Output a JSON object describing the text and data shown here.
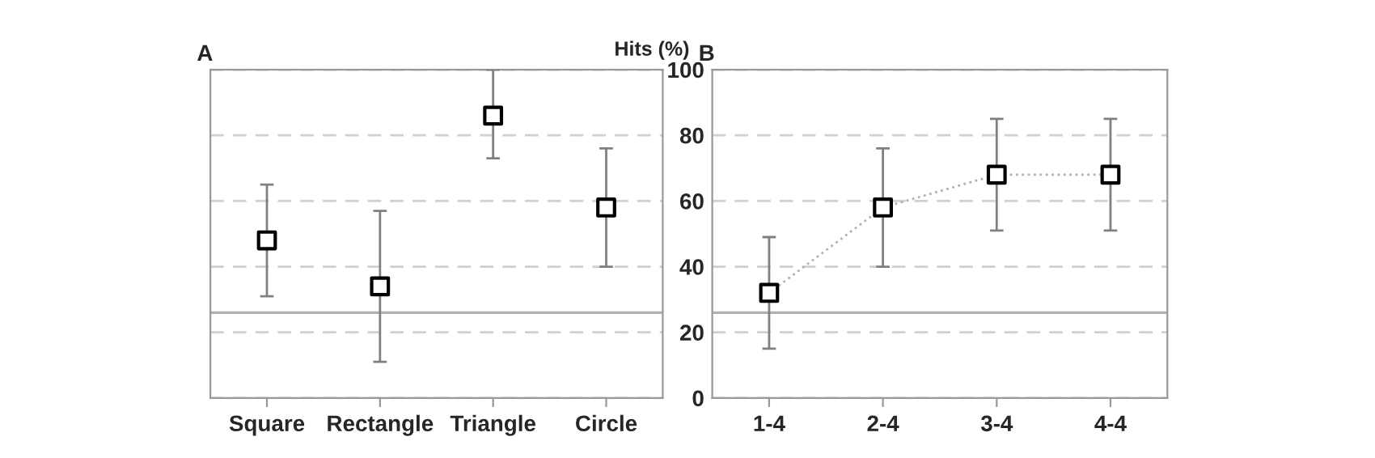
{
  "chart_data": [
    {
      "type": "scatter",
      "title": "A",
      "categories": [
        "Square",
        "Rectangle",
        "Triangle",
        "Circle"
      ],
      "ylim": [
        0,
        100
      ],
      "yticks": [
        0,
        20,
        40,
        60,
        80,
        100
      ],
      "tick_labels": "x",
      "grid": "y",
      "marker": "square",
      "series": [
        {
          "color": "#000000",
          "values": [
            48,
            34,
            86,
            58
          ],
          "errors": [
            [
              31,
              65
            ],
            [
              11,
              57
            ],
            [
              73,
              100
            ],
            [
              40,
              76
            ]
          ]
        }
      ],
      "ref_lines": [
        {
          "axis": "y",
          "value": 26,
          "color": "#b0b0b0",
          "line_style": "solid"
        }
      ]
    },
    {
      "type": "scatter",
      "title": "B",
      "ylabel": "Hits (%)",
      "categories": [
        "1-4",
        "2-4",
        "3-4",
        "4-4"
      ],
      "ylim": [
        0,
        100
      ],
      "yticks": [
        0,
        20,
        40,
        60,
        80,
        100
      ],
      "grid": "y",
      "series": [
        {
          "type": "line",
          "color": "#b0b0b0",
          "line_style": "dotted",
          "values": [
            32,
            58,
            68,
            68
          ]
        },
        {
          "color": "#000000",
          "marker": "square",
          "values": [
            32,
            58,
            68,
            68
          ],
          "errors": [
            [
              15,
              49
            ],
            [
              40,
              76
            ],
            [
              51,
              85
            ],
            [
              51,
              85
            ]
          ]
        }
      ],
      "ref_lines": [
        {
          "axis": "y",
          "value": 26,
          "color": "#b0b0b0",
          "line_style": "solid"
        }
      ]
    }
  ]
}
